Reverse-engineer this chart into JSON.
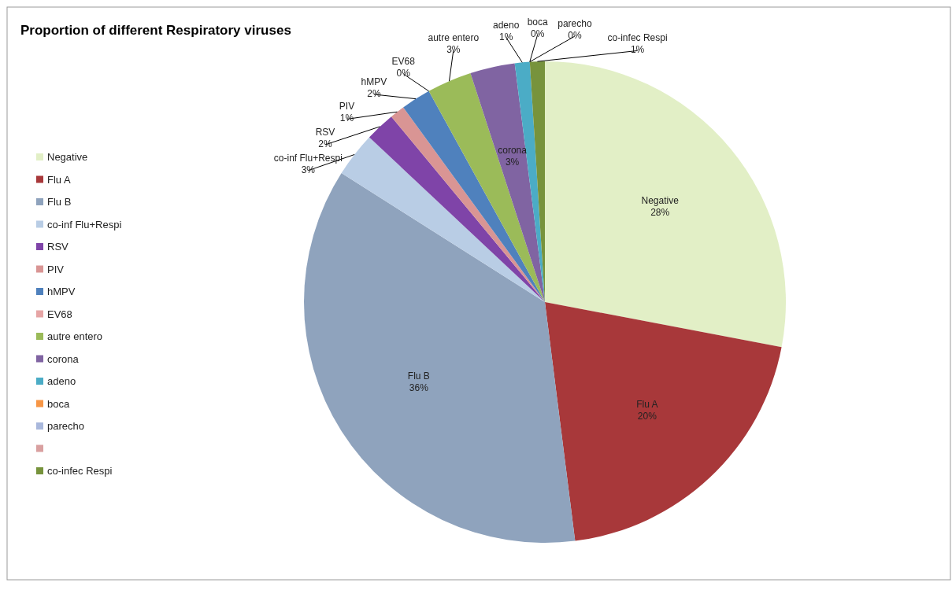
{
  "chart_data": {
    "type": "pie",
    "title": "Proportion of different Respiratory viruses",
    "categories": [
      "Negative",
      "Flu A",
      "Flu B",
      "co-inf Flu+Respi",
      "RSV",
      "PIV",
      "hMPV",
      "EV68",
      "autre entero",
      "corona",
      "adeno",
      "boca",
      "parecho",
      null,
      "co-infec Respi"
    ],
    "values": [
      28,
      20,
      36,
      3,
      2,
      1,
      2,
      0,
      3,
      3,
      1,
      0,
      0,
      0,
      1
    ],
    "value_labels": [
      "28%",
      "20%",
      "36%",
      "3%",
      "2%",
      "1%",
      "2%",
      "0%",
      "3%",
      "3%",
      "1%",
      "0%",
      "0%",
      null,
      "1%"
    ],
    "colors": [
      "#e2efc6",
      "#a8383a",
      "#8fa3bd",
      "#b9cde5",
      "#7f44a8",
      "#d99594",
      "#4f81bd",
      "#e6a5a5",
      "#9bbb59",
      "#8064a2",
      "#4bacc6",
      "#f79646",
      "#a9b8dc",
      "#d9a0a0",
      "#77933c"
    ],
    "legend": "left"
  }
}
